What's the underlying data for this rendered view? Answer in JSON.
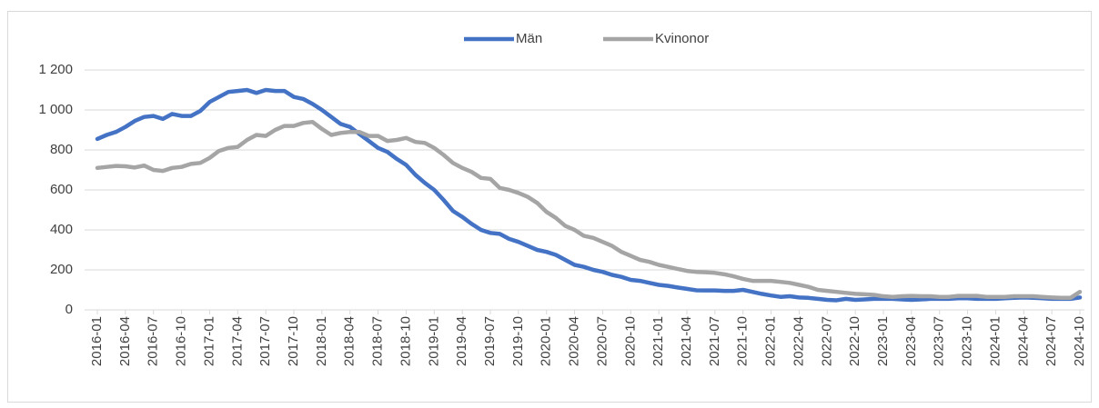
{
  "chart_data": {
    "type": "line",
    "categories": [
      "2016-01",
      null,
      null,
      "2016-04",
      null,
      null,
      "2016-07",
      null,
      null,
      "2016-10",
      null,
      null,
      "2017-01",
      null,
      null,
      "2017-04",
      null,
      null,
      "2017-07",
      null,
      null,
      "2017-10",
      null,
      null,
      "2018-01",
      null,
      null,
      "2018-04",
      null,
      null,
      "2018-07",
      null,
      null,
      "2018-10",
      null,
      null,
      "2019-01",
      null,
      null,
      "2019-04",
      null,
      null,
      "2019-07",
      null,
      null,
      "2019-10",
      null,
      null,
      "2020-01",
      null,
      null,
      "2020-04",
      null,
      null,
      "2020-07",
      null,
      null,
      "2020-10",
      null,
      null,
      "2021-01",
      null,
      null,
      "2021-04",
      null,
      null,
      "2021-07",
      null,
      null,
      "2021-10",
      null,
      null,
      "2022-01",
      null,
      null,
      "2022-04",
      null,
      null,
      "2022-07",
      null,
      null,
      "2022-10",
      null,
      null,
      "2023-01",
      null,
      null,
      "2023-04",
      null,
      null,
      "2023-07",
      null,
      null,
      "2023-10",
      null,
      null,
      "2024-01",
      null,
      null,
      "2024-04",
      null,
      null,
      "2024-07",
      null,
      null,
      "2024-10"
    ],
    "series": [
      {
        "name": "Män",
        "color": "#4472c4",
        "values": [
          855,
          875,
          890,
          915,
          945,
          965,
          970,
          955,
          980,
          970,
          970,
          995,
          1040,
          1065,
          1090,
          1095,
          1100,
          1085,
          1100,
          1095,
          1095,
          1065,
          1055,
          1030,
          1000,
          965,
          930,
          915,
          880,
          845,
          810,
          790,
          755,
          725,
          675,
          635,
          600,
          550,
          495,
          465,
          430,
          400,
          385,
          380,
          355,
          340,
          320,
          300,
          290,
          275,
          250,
          225,
          215,
          200,
          190,
          175,
          165,
          150,
          145,
          135,
          125,
          120,
          112,
          105,
          98,
          97,
          97,
          95,
          95,
          100,
          90,
          80,
          72,
          65,
          68,
          62,
          60,
          55,
          50,
          48,
          55,
          50,
          52,
          55,
          55,
          55,
          52,
          50,
          52,
          55,
          55,
          55,
          58,
          58,
          55,
          55,
          55,
          58,
          60,
          62,
          60,
          58,
          55,
          55,
          55,
          62
        ]
      },
      {
        "name": "Kvinonor",
        "color": "#a5a5a5",
        "values": [
          710,
          715,
          720,
          718,
          712,
          722,
          700,
          695,
          710,
          715,
          730,
          735,
          760,
          795,
          810,
          815,
          850,
          875,
          870,
          900,
          920,
          920,
          935,
          940,
          905,
          875,
          885,
          890,
          890,
          870,
          870,
          845,
          850,
          860,
          840,
          835,
          810,
          775,
          735,
          710,
          690,
          660,
          655,
          610,
          600,
          585,
          565,
          535,
          490,
          460,
          420,
          400,
          370,
          360,
          340,
          320,
          290,
          270,
          250,
          240,
          225,
          215,
          205,
          195,
          190,
          188,
          185,
          178,
          168,
          155,
          145,
          145,
          145,
          140,
          135,
          125,
          115,
          100,
          95,
          90,
          85,
          80,
          78,
          75,
          68,
          65,
          68,
          70,
          68,
          68,
          65,
          65,
          70,
          70,
          70,
          65,
          65,
          65,
          68,
          68,
          68,
          65,
          62,
          60,
          60,
          90
        ]
      }
    ],
    "ylim": [
      0,
      1200
    ],
    "yticks": [
      0,
      200,
      400,
      600,
      800,
      {
        "value": 1000,
        "label": "1 000"
      },
      {
        "value": 1200,
        "label": "1 200"
      }
    ],
    "grid": true,
    "legend": "top"
  }
}
